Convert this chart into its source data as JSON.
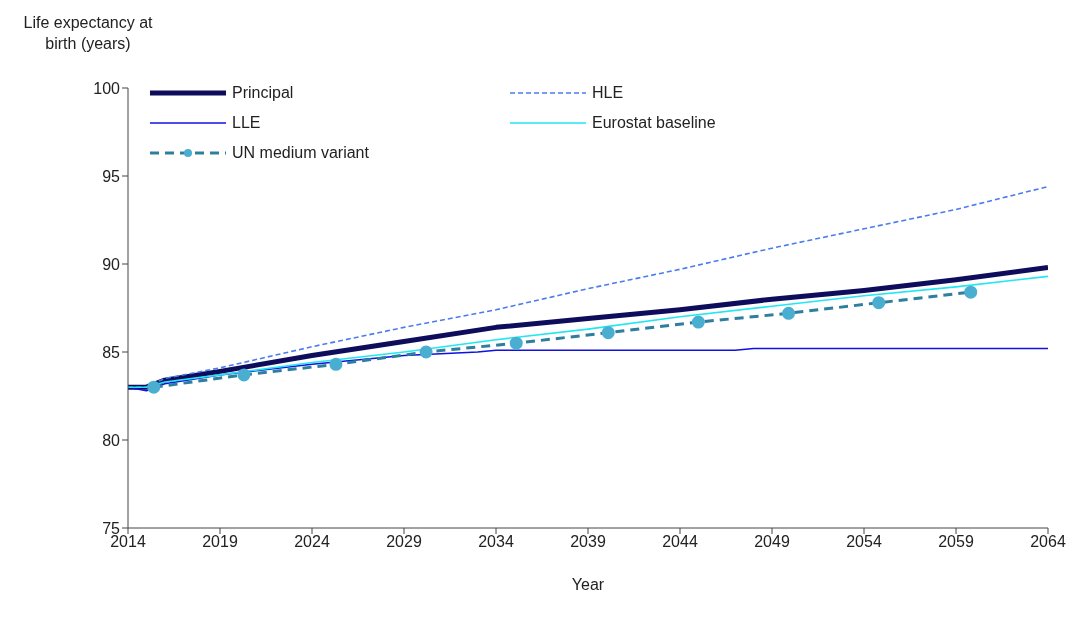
{
  "chart_data": {
    "type": "line",
    "ylabel": "Life expectancy at birth (years)",
    "xlabel": "Year",
    "xlim": [
      2014,
      2064
    ],
    "xticks": [
      2014,
      2019,
      2024,
      2029,
      2034,
      2039,
      2044,
      2049,
      2054,
      2059,
      2064
    ],
    "ylim": [
      75,
      100
    ],
    "yticks": [
      75,
      80,
      85,
      90,
      95,
      100
    ],
    "grid": false,
    "legend": "top left",
    "series": [
      {
        "name": "Principal",
        "color": "#0d0d5c",
        "line_style": "solid",
        "marker": "none",
        "x": [
          2014,
          2015,
          2016,
          2019,
          2024,
          2029,
          2034,
          2039,
          2044,
          2049,
          2054,
          2059,
          2064
        ],
        "values": [
          83.0,
          83.0,
          83.4,
          83.9,
          84.8,
          85.6,
          86.4,
          86.9,
          87.4,
          88.0,
          88.5,
          89.1,
          89.8
        ]
      },
      {
        "name": "HLE",
        "color": "#4a7cf0",
        "line_style": "dotted",
        "marker": "none",
        "x": [
          2014,
          2015,
          2016,
          2019,
          2024,
          2029,
          2034,
          2039,
          2044,
          2049,
          2054,
          2059,
          2064
        ],
        "values": [
          83.0,
          83.0,
          83.5,
          84.1,
          85.3,
          86.4,
          87.4,
          88.6,
          89.7,
          90.9,
          92.0,
          93.1,
          94.4
        ]
      },
      {
        "name": "LLE",
        "color": "#1010e0",
        "line_style": "solid",
        "marker": "none",
        "x": [
          2014,
          2015,
          2016,
          2019,
          2024,
          2029,
          2033,
          2034,
          2047,
          2048,
          2064
        ],
        "values": [
          83.0,
          82.8,
          83.2,
          83.7,
          84.3,
          84.8,
          85.0,
          85.1,
          85.1,
          85.2,
          85.2
        ]
      },
      {
        "name": "Eurostat baseline",
        "color": "#22e6f0",
        "line_style": "solid",
        "marker": "none",
        "x": [
          2014,
          2015,
          2016,
          2019,
          2024,
          2029,
          2034,
          2039,
          2044,
          2049,
          2054,
          2059,
          2064
        ],
        "values": [
          83.0,
          83.0,
          83.3,
          83.7,
          84.4,
          85.0,
          85.7,
          86.3,
          87.0,
          87.6,
          88.2,
          88.7,
          89.3
        ]
      },
      {
        "name": "UN medium variant",
        "color": "#2e7e9e",
        "line_style": "dashed",
        "marker": "circle",
        "x": [
          2015.4,
          2020.3,
          2025.3,
          2030.2,
          2035.1,
          2040.1,
          2045.0,
          2049.9,
          2054.8,
          2059.8
        ],
        "values": [
          83.0,
          83.7,
          84.3,
          85.0,
          85.5,
          86.1,
          86.7,
          87.2,
          87.8,
          88.4
        ]
      }
    ]
  }
}
